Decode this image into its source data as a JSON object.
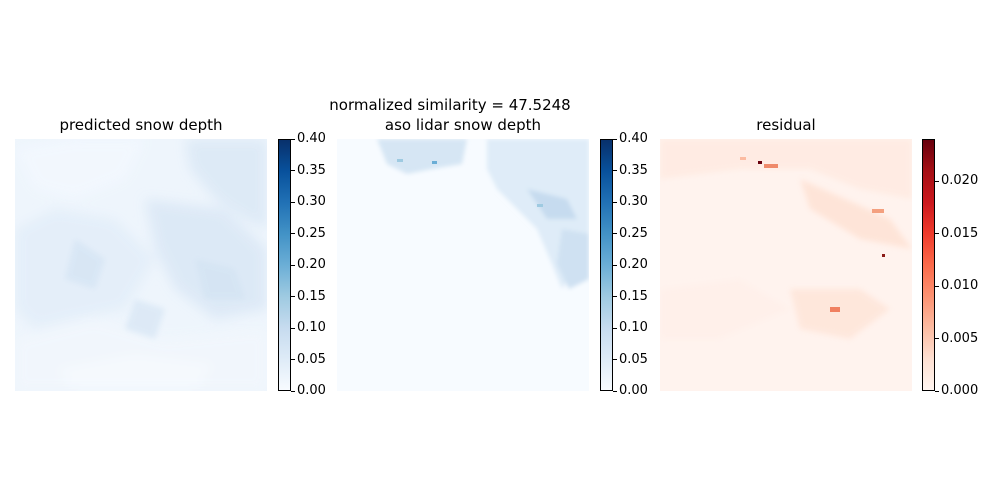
{
  "figure": {
    "suptitle": "normalized similarity = 47.5248"
  },
  "chart_data": [
    {
      "type": "heatmap",
      "title": "predicted snow depth",
      "colormap": "Blues",
      "colorbar": {
        "range": [
          0,
          0.4
        ],
        "ticks": [
          "0.00",
          "0.05",
          "0.10",
          "0.15",
          "0.20",
          "0.25",
          "0.30",
          "0.35",
          "0.40"
        ]
      },
      "axes": "off",
      "approx_value_range": [
        0.0,
        0.08
      ]
    },
    {
      "type": "heatmap",
      "title": "aso lidar snow depth",
      "colormap": "Blues",
      "colorbar": {
        "range": [
          0,
          0.4
        ],
        "ticks": [
          "0.00",
          "0.05",
          "0.10",
          "0.15",
          "0.20",
          "0.25",
          "0.30",
          "0.35",
          "0.40"
        ]
      },
      "axes": "off",
      "approx_value_range": [
        0.0,
        0.2
      ]
    },
    {
      "type": "heatmap",
      "title": "residual",
      "colormap": "Reds",
      "colorbar": {
        "range": [
          0,
          0.024
        ],
        "ticks": [
          "0.000",
          "0.005",
          "0.010",
          "0.015",
          "0.020"
        ]
      },
      "axes": "off",
      "approx_value_range": [
        0.0,
        0.024
      ]
    }
  ],
  "colors": {
    "blues_low": "#f7fbff",
    "blues_high": "#08306b",
    "reds_low": "#fff5f0",
    "reds_high": "#67000d"
  }
}
